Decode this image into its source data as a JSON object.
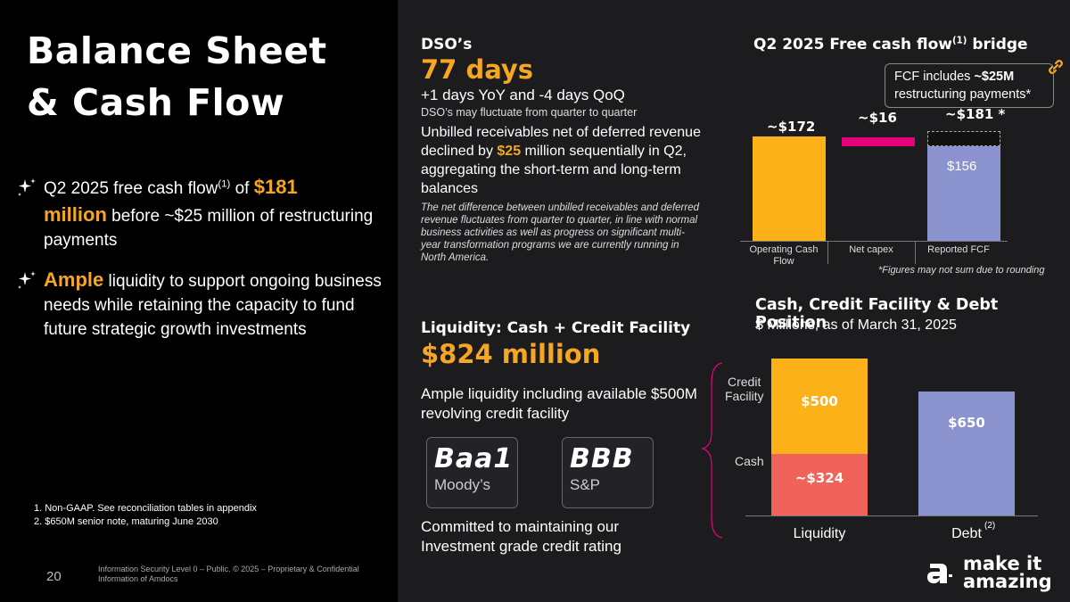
{
  "left": {
    "title_line1": "Balance Sheet",
    "title_line2": "& Cash Flow",
    "bullet1": {
      "pre": "Q2 2025 free cash flow",
      "sup": "(1)",
      "mid": " of ",
      "amount": "$181",
      "amount2": "million",
      "post": " before ~$25 million of restructuring payments"
    },
    "bullet2": {
      "lead": "Ample",
      "post": " liquidity to support ongoing business needs while retaining the capacity to fund future strategic growth investments"
    },
    "footnote1": "1.  Non-GAAP. See reconciliation tables in appendix",
    "footnote2": "2.  $650M senior note, maturing June 2030",
    "page_number": "20",
    "legal": "Information Security Level 0 – Public. © 2025 – Proprietary & Confidential Information of Amdocs"
  },
  "dso": {
    "heading": "DSO’s",
    "value": "77 days",
    "change": "+1 days YoY and -4 days QoQ",
    "note": "DSO’s may fluctuate from quarter to quarter",
    "para_pre": "Unbilled receivables net of deferred revenue declined by ",
    "para_amount": "$25",
    "para_post": " million sequentially in Q2, aggregating the short-term and long-term balances",
    "italic": "The net difference between unbilled receivables and deferred revenue fluctuates from quarter to quarter, in line with normal business activities as well as progress on significant multi-year transformation programs we are currently running in North America."
  },
  "liquidity": {
    "heading": "Liquidity: Cash + Credit Facility",
    "value": "$824 million",
    "desc": "Ample liquidity including available $500M revolving credit facility",
    "rating1_grade": "Baa1",
    "rating1_agency": "Moody’s",
    "rating2_grade": "BBB",
    "rating2_agency": "S&P",
    "commit": "Committed to maintaining our Investment grade credit rating"
  },
  "fcf_chart": {
    "heading_pre": "Q2 2025 Free cash flow",
    "heading_sup": "(1)",
    "heading_post": " bridge",
    "callout_pre": "FCF includes ",
    "callout_bold": "~$25M",
    "callout_post": " restructuring payments*",
    "footnote": "*Figures may not sum due to rounding",
    "colors": {
      "ocf": "#fbb117",
      "capex": "#e6007e",
      "fcf": "#8b93cf"
    }
  },
  "debt_chart": {
    "heading": "Cash, Credit Facility & Debt Position",
    "subheading": "$ Millions, as of March 31, 2025",
    "credit_label_1": "Credit",
    "credit_label_2": "Facility",
    "cash_label": "Cash",
    "debt_sup": "(2)",
    "colors": {
      "credit": "#fbb117",
      "cash": "#f0635a",
      "debt": "#8b93cf"
    }
  },
  "chart_data": [
    {
      "type": "bar",
      "title": "Q2 2025 Free cash flow bridge",
      "categories": [
        "Operating Cash Flow",
        "Net capex",
        "Reported FCF"
      ],
      "values": [
        172,
        -16,
        156
      ],
      "data_labels": [
        "~$172",
        "~$16",
        "$156"
      ],
      "total_label": "~$181 *",
      "restructuring_addback": 25
    },
    {
      "type": "bar",
      "title": "Cash, Credit Facility & Debt Position",
      "categories": [
        "Liquidity",
        "Debt"
      ],
      "series": [
        {
          "name": "Cash",
          "values": [
            324,
            0
          ],
          "labels": [
            "~$324",
            ""
          ]
        },
        {
          "name": "Credit Facility",
          "values": [
            500,
            0
          ],
          "labels": [
            "$500",
            ""
          ]
        },
        {
          "name": "Debt",
          "values": [
            0,
            650
          ],
          "labels": [
            "",
            "$650"
          ]
        }
      ],
      "unit": "$ Millions"
    }
  ],
  "brand": {
    "slogan_1": "make it",
    "slogan_2": "amazing"
  }
}
